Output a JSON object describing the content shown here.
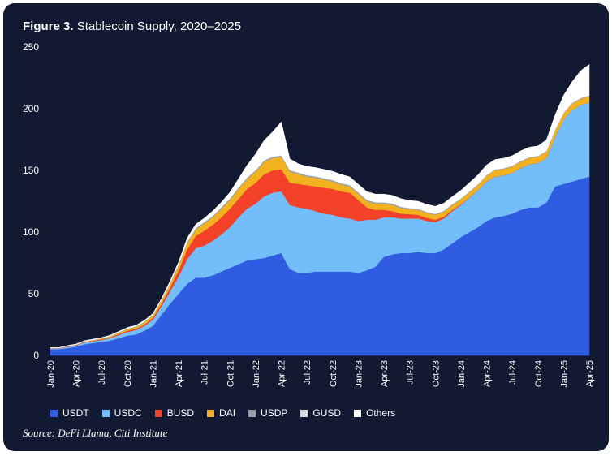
{
  "figure": {
    "label": "Figure 3.",
    "title": "Stablecoin Supply, 2020–2025",
    "source": "Source: DeFi Llama, Citi Institute"
  },
  "colors": {
    "background": "#121a33",
    "USDT": "#2f5ce0",
    "USDC": "#73bdfa",
    "BUSD": "#f34229",
    "DAI": "#f2b21f",
    "USDP": "#9aa1ad",
    "GUSD": "#d7d9de",
    "Others": "#ffffff"
  },
  "chart_data": {
    "type": "area",
    "stacked": true,
    "ylim": [
      0,
      250
    ],
    "yticks": [
      0,
      50,
      100,
      150,
      200,
      250
    ],
    "x_ticks": [
      "Jan-20",
      "Apr-20",
      "Jul-20",
      "Oct-20",
      "Jan-21",
      "Apr-21",
      "Jul-21",
      "Oct-21",
      "Jan-22",
      "Apr-22",
      "Jul-22",
      "Oct-22",
      "Jan-23",
      "Apr-23",
      "Jul-23",
      "Oct-23",
      "Jan-24",
      "Apr-24",
      "Jul-24",
      "Oct-24",
      "Jan-25",
      "Apr-25"
    ],
    "x": [
      "2020-01",
      "2020-02",
      "2020-03",
      "2020-04",
      "2020-05",
      "2020-06",
      "2020-07",
      "2020-08",
      "2020-09",
      "2020-10",
      "2020-11",
      "2020-12",
      "2021-01",
      "2021-02",
      "2021-03",
      "2021-04",
      "2021-05",
      "2021-06",
      "2021-07",
      "2021-08",
      "2021-09",
      "2021-10",
      "2021-11",
      "2021-12",
      "2022-01",
      "2022-02",
      "2022-03",
      "2022-04",
      "2022-05",
      "2022-06",
      "2022-07",
      "2022-08",
      "2022-09",
      "2022-10",
      "2022-11",
      "2022-12",
      "2023-01",
      "2023-02",
      "2023-03",
      "2023-04",
      "2023-05",
      "2023-06",
      "2023-07",
      "2023-08",
      "2023-09",
      "2023-10",
      "2023-11",
      "2023-12",
      "2024-01",
      "2024-02",
      "2024-03",
      "2024-04",
      "2024-05",
      "2024-06",
      "2024-07",
      "2024-08",
      "2024-09",
      "2024-10",
      "2024-11",
      "2024-12",
      "2025-01",
      "2025-02",
      "2025-03",
      "2025-04"
    ],
    "series": [
      {
        "name": "USDT",
        "values": [
          5,
          5,
          6,
          7,
          9,
          10,
          11,
          12,
          14,
          16,
          17,
          20,
          24,
          33,
          42,
          50,
          58,
          63,
          63,
          65,
          68,
          71,
          74,
          77,
          78,
          79,
          81,
          83,
          70,
          67,
          67,
          68,
          68,
          68,
          68,
          68,
          67,
          69,
          72,
          80,
          82,
          83,
          83,
          84,
          83,
          83,
          86,
          91,
          96,
          100,
          104,
          109,
          112,
          113,
          115,
          118,
          120,
          120,
          124,
          137,
          139,
          141,
          143,
          145
        ]
      },
      {
        "name": "USDC",
        "values": [
          0.5,
          0.6,
          1,
          1,
          1.5,
          1.5,
          1.5,
          2,
          2.5,
          3,
          3.5,
          4,
          5,
          7,
          10,
          14,
          20,
          24,
          26,
          28,
          30,
          33,
          38,
          42,
          45,
          50,
          51,
          50,
          52,
          53,
          52,
          49,
          47,
          46,
          44,
          43,
          42,
          41,
          38,
          32,
          30,
          28,
          28,
          27,
          26,
          25,
          25,
          26,
          26,
          28,
          30,
          32,
          33,
          33,
          33,
          34,
          35,
          36,
          36,
          40,
          52,
          58,
          60,
          60
        ]
      },
      {
        "name": "BUSD",
        "values": [
          0.2,
          0.2,
          0.3,
          0.3,
          0.4,
          0.5,
          0.5,
          0.6,
          0.8,
          1,
          1,
          1,
          1.5,
          2,
          3,
          5,
          8,
          10,
          12,
          13,
          14,
          15,
          15,
          16,
          17,
          18,
          18,
          18,
          18,
          19,
          19,
          20,
          21,
          21,
          21,
          21,
          17,
          10,
          8,
          6,
          5,
          4,
          3.5,
          3,
          2.5,
          2,
          1.5,
          1,
          0.5,
          0.3,
          0.2,
          0.2,
          0.1,
          0.1,
          0.1,
          0.1,
          0.1,
          0.1,
          0.1,
          0.1,
          0.1,
          0.1,
          0.1,
          0.1
        ]
      },
      {
        "name": "DAI",
        "values": [
          0.1,
          0.1,
          0.2,
          0.2,
          0.3,
          0.4,
          0.5,
          0.8,
          1,
          1.2,
          1.5,
          1.8,
          2,
          2.5,
          3,
          4,
          5,
          5,
          6,
          6,
          7,
          7,
          8,
          8,
          9,
          10,
          10,
          10,
          9,
          8,
          7,
          7,
          6.5,
          6,
          5.5,
          5,
          5,
          5,
          5,
          5,
          5,
          4.5,
          4,
          4,
          4,
          4,
          4,
          4,
          4,
          4,
          4,
          4.5,
          5,
          5,
          5,
          5,
          5,
          5,
          5,
          5,
          5,
          5,
          5,
          5
        ]
      },
      {
        "name": "USDP",
        "values": [
          0.1,
          0.1,
          0.1,
          0.2,
          0.2,
          0.2,
          0.3,
          0.3,
          0.4,
          0.5,
          0.5,
          0.5,
          0.5,
          0.6,
          0.7,
          0.8,
          0.9,
          1,
          1,
          1,
          1,
          1,
          1,
          1,
          1,
          1,
          1,
          1,
          1,
          1,
          1,
          1,
          1,
          1,
          1,
          1,
          1,
          1,
          1,
          1,
          1,
          0.8,
          0.8,
          0.7,
          0.7,
          0.6,
          0.6,
          0.6,
          0.5,
          0.5,
          0.5,
          0.5,
          0.5,
          0.5,
          0.5,
          0.5,
          0.5,
          0.5,
          0.5,
          0.5,
          0.5,
          0.5,
          0.5,
          0.5
        ]
      },
      {
        "name": "GUSD",
        "values": [
          0.1,
          0.1,
          0.1,
          0.1,
          0.1,
          0.1,
          0.1,
          0.1,
          0.1,
          0.1,
          0.1,
          0.1,
          0.1,
          0.1,
          0.1,
          0.1,
          0.2,
          0.3,
          0.3,
          0.3,
          0.3,
          0.3,
          0.3,
          0.3,
          0.4,
          0.4,
          0.4,
          0.4,
          0.4,
          0.3,
          0.3,
          0.3,
          0.3,
          0.3,
          0.3,
          0.3,
          0.3,
          0.3,
          0.3,
          0.3,
          0.3,
          0.3,
          0.3,
          0.3,
          0.3,
          0.3,
          0.3,
          0.3,
          0.3,
          0.3,
          0.3,
          0.3,
          0.3,
          0.3,
          0.3,
          0.3,
          0.3,
          0.3,
          0.3,
          0.3,
          0.3,
          0.3,
          0.3,
          0.3
        ]
      },
      {
        "name": "Others",
        "values": [
          0.3,
          0.3,
          0.3,
          0.4,
          0.5,
          0.5,
          0.6,
          0.6,
          0.7,
          0.8,
          0.8,
          1,
          1,
          1,
          1.5,
          2,
          3,
          3,
          3,
          4,
          4,
          5,
          7,
          10,
          13,
          16,
          20,
          27,
          9,
          7,
          7,
          7,
          7,
          7,
          7,
          6.5,
          6.5,
          6.5,
          6.5,
          6.5,
          6.5,
          6.5,
          6,
          6,
          6,
          6,
          6,
          6,
          6.5,
          7,
          7.5,
          8,
          8,
          8,
          8,
          8,
          8,
          8,
          9,
          12,
          14,
          17,
          22,
          25
        ]
      }
    ]
  }
}
